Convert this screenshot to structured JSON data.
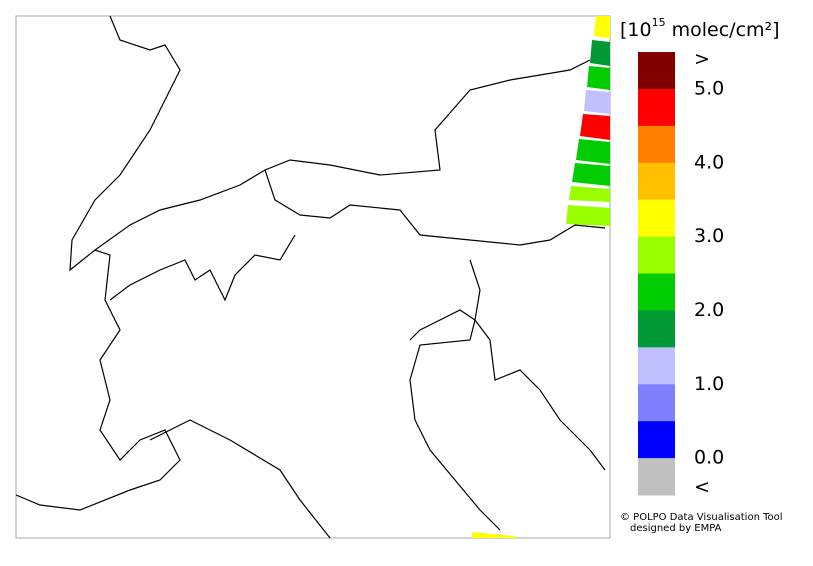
{
  "unit": {
    "prefix": "[10",
    "exponent": "15",
    "suffix": " molec/cm²]"
  },
  "colorbar": {
    "colors": [
      "#800000",
      "#ff0000",
      "#ff8000",
      "#ffc000",
      "#ffff00",
      "#99ff00",
      "#00cc00",
      "#009933",
      "#c0c0ff",
      "#8080ff",
      "#0000ff",
      "#c0c0c0"
    ],
    "labels": [
      ">",
      "5.0",
      "4.0",
      "3.0",
      "2.0",
      "1.0",
      "0.0",
      "<"
    ]
  },
  "credit": {
    "line1": "© POLPO Data Visualisation Tool",
    "line2": "designed by EMPA"
  }
}
